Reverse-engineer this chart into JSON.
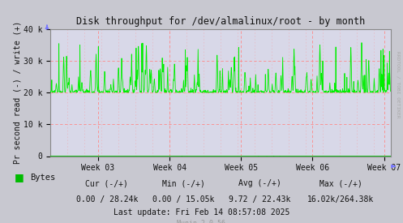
{
  "title": "Disk throughput for /dev/almalinux/root - by month",
  "ylabel": "Pr second read (-) / write (+)",
  "background_color": "#c8c8d0",
  "plot_bg_color": "#d8d8e8",
  "grid_color_h": "#ff8888",
  "grid_color_v": "#ff8888",
  "line_color": "#00ee00",
  "ylim": [
    0,
    40000
  ],
  "yticks": [
    0,
    10000,
    20000,
    30000,
    40000
  ],
  "ytick_labels": [
    "0",
    "10 k",
    "20 k",
    "30 k",
    "40 k"
  ],
  "xtick_labels": [
    "Week 03",
    "Week 04",
    "Week 05",
    "Week 06",
    "Week 07"
  ],
  "legend_label": "Bytes",
  "legend_color": "#00bb00",
  "cur_text": "Cur (-/+)",
  "cur_val": "0.00 / 28.24k",
  "min_text": "Min (-/+)",
  "min_val": "0.00 / 15.05k",
  "avg_text": "Avg (-/+)",
  "avg_val": "9.72 / 22.43k",
  "max_text": "Max (-/+)",
  "max_val": "16.02k/264.38k",
  "last_update": "Last update: Fri Feb 14 08:57:08 2025",
  "munin_version": "Munin 2.0.56",
  "watermark": "RRDTOOL / TOBI OETIKER",
  "base_value": 20000,
  "num_points": 1200,
  "seed": 7
}
